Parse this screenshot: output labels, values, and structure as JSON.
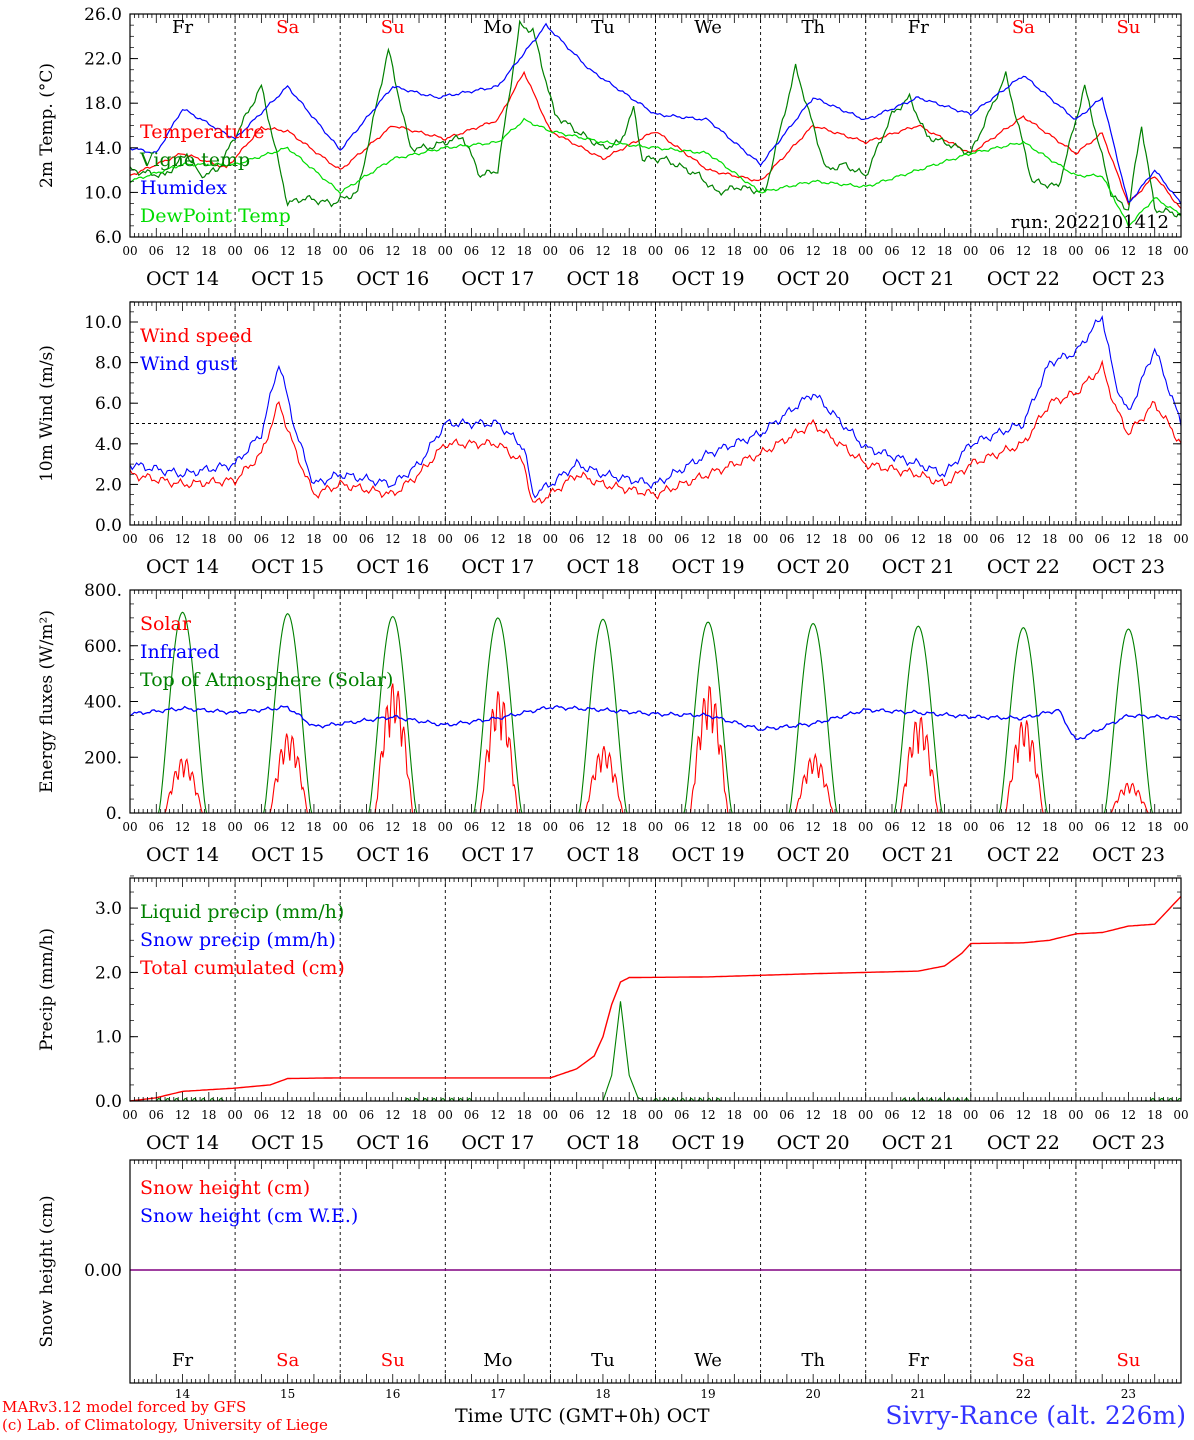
{
  "colors": {
    "red": "#ff0000",
    "green": "#008000",
    "blue": "#0000ff",
    "lime": "#00dd00",
    "purple": "#800080"
  },
  "days": [
    "Fr",
    "Sa",
    "Su",
    "Mo",
    "Tu",
    "We",
    "Th",
    "Fr",
    "Sa",
    "Su"
  ],
  "weekend_days": [
    1,
    2,
    8,
    9
  ],
  "dates": [
    "OCT 14",
    "OCT 15",
    "OCT 16",
    "OCT 17",
    "OCT 18",
    "OCT 19",
    "OCT 20",
    "OCT 21",
    "OCT 22",
    "OCT 23"
  ],
  "day_numbers": [
    "14",
    "15",
    "16",
    "17",
    "18",
    "19",
    "20",
    "21",
    "22",
    "23"
  ],
  "hour_ticks": [
    "00",
    "06",
    "12",
    "18"
  ],
  "hour_end": "00",
  "run_label": "run: 2022101412",
  "footer": {
    "model_line": "MARv3.12 model forced by GFS",
    "credit_line": "(c) Lab. of Climatology, University of Liege",
    "time_label": "Time UTC (GMT+0h) OCT",
    "station": "Sivry-Rance (alt. 226m)"
  },
  "chart_data": [
    {
      "type": "line",
      "ylabel": "2m Temp. (°C)",
      "ylim": [
        6,
        26
      ],
      "yticks": [
        "6.0",
        "10.0",
        "14.0",
        "18.0",
        "22.0",
        "26.0"
      ],
      "x_unit": "hours since Oct 14 00 UTC",
      "series": [
        {
          "name": "Temperature",
          "color": "#ff0000",
          "x": [
            0,
            12,
            22,
            30,
            36,
            48,
            60,
            72,
            84,
            90,
            96,
            108,
            120,
            132,
            144,
            156,
            168,
            180,
            192,
            204,
            216,
            222,
            228,
            234,
            240
          ],
          "y": [
            11.5,
            13.5,
            12.2,
            15.8,
            15.5,
            12.0,
            16.0,
            14.8,
            16.5,
            20.8,
            15.5,
            13.0,
            15.5,
            12.0,
            11.0,
            16.0,
            14.5,
            16.0,
            13.5,
            16.8,
            13.5,
            15.3,
            9.0,
            11.5,
            8.5
          ]
        },
        {
          "name": "Vigne temp",
          "color": "#008000",
          "x": [
            0,
            8,
            13,
            16,
            20,
            30,
            36,
            40,
            46,
            52,
            59,
            64,
            68,
            76,
            80,
            84,
            89,
            92,
            97,
            102,
            108,
            112,
            115,
            117,
            122,
            130,
            134,
            139,
            145,
            152,
            159,
            163,
            168,
            174,
            178,
            182,
            186,
            192,
            200,
            206,
            212,
            218,
            224,
            226,
            228,
            231,
            234,
            240
          ],
          "y": [
            12.0,
            11.5,
            13.5,
            11.5,
            12.0,
            19.5,
            9.0,
            9.5,
            9.0,
            10.0,
            22.8,
            14.0,
            14.0,
            15.0,
            11.5,
            12.0,
            25.0,
            24.5,
            17.0,
            15.5,
            14.0,
            14.5,
            17.5,
            13.0,
            13.0,
            11.5,
            10.0,
            10.5,
            10.0,
            21.2,
            12.0,
            12.5,
            11.5,
            17.0,
            18.5,
            15.0,
            14.5,
            13.5,
            20.5,
            11.0,
            10.5,
            19.5,
            10.0,
            9.0,
            8.5,
            16.0,
            8.5,
            8.0
          ]
        },
        {
          "name": "Humidex",
          "color": "#0000ff",
          "x": [
            0,
            6,
            12,
            24,
            36,
            48,
            60,
            70,
            84,
            95,
            105,
            120,
            132,
            144,
            156,
            168,
            180,
            192,
            204,
            216,
            222,
            228,
            234,
            240
          ],
          "y": [
            14.0,
            13.5,
            17.5,
            14.8,
            19.5,
            13.8,
            19.5,
            18.5,
            19.5,
            25.0,
            21.0,
            17.0,
            16.5,
            12.5,
            18.5,
            16.5,
            18.5,
            17.0,
            20.5,
            16.5,
            18.5,
            9.0,
            12.0,
            9.0
          ]
        },
        {
          "name": "DewPoint Temp",
          "color": "#00dd00",
          "x": [
            0,
            12,
            24,
            36,
            48,
            60,
            72,
            84,
            90,
            96,
            108,
            120,
            132,
            144,
            156,
            168,
            180,
            192,
            204,
            216,
            222,
            228,
            234,
            240
          ],
          "y": [
            11.0,
            12.5,
            12.5,
            14.0,
            10.0,
            13.0,
            14.0,
            14.5,
            16.5,
            15.5,
            14.5,
            14.0,
            13.5,
            10.0,
            11.0,
            10.5,
            12.0,
            13.5,
            14.5,
            11.5,
            11.5,
            7.0,
            9.5,
            8.0
          ]
        }
      ]
    },
    {
      "type": "line",
      "ylabel": "10m Wind (m/s)",
      "ylim": [
        0,
        11
      ],
      "yticks": [
        "0.0",
        "2.0",
        "4.0",
        "6.0",
        "8.0",
        "10.0"
      ],
      "reference_line": 5.0,
      "series": [
        {
          "name": "Wind speed",
          "color": "#ff0000",
          "x": [
            0,
            12,
            24,
            30,
            34,
            38,
            42,
            48,
            60,
            66,
            72,
            84,
            90,
            92,
            96,
            102,
            108,
            120,
            132,
            144,
            156,
            168,
            180,
            186,
            192,
            204,
            210,
            216,
            222,
            225,
            228,
            234,
            240
          ],
          "y": [
            2.5,
            2.0,
            2.2,
            3.5,
            6.0,
            3.5,
            1.5,
            2.0,
            1.5,
            2.5,
            4.0,
            4.0,
            3.0,
            1.0,
            1.5,
            2.5,
            2.0,
            1.5,
            2.5,
            3.5,
            5.0,
            3.0,
            2.5,
            2.0,
            3.0,
            4.0,
            6.0,
            6.5,
            7.8,
            5.8,
            4.5,
            6.0,
            4.0
          ]
        },
        {
          "name": "Wind gust",
          "color": "#0000ff",
          "x": [
            0,
            12,
            24,
            30,
            34,
            38,
            42,
            48,
            60,
            66,
            72,
            84,
            90,
            92,
            96,
            102,
            108,
            120,
            132,
            144,
            156,
            168,
            180,
            186,
            192,
            204,
            210,
            216,
            222,
            225,
            228,
            234,
            240
          ],
          "y": [
            3.0,
            2.5,
            3.0,
            4.5,
            8.0,
            4.5,
            2.0,
            2.5,
            2.0,
            3.0,
            5.0,
            5.0,
            3.8,
            1.5,
            2.0,
            3.0,
            2.5,
            2.0,
            3.5,
            4.5,
            6.5,
            3.8,
            3.0,
            2.5,
            4.0,
            5.0,
            8.0,
            8.5,
            10.3,
            7.0,
            5.5,
            8.7,
            5.0
          ]
        }
      ]
    },
    {
      "type": "line",
      "ylabel": "Energy fluxes (W/m²)",
      "ylim": [
        0,
        800
      ],
      "yticks": [
        "0.",
        "200.",
        "400.",
        "600.",
        "800."
      ],
      "series": [
        {
          "name": "Solar",
          "color": "#ff0000",
          "peaks": [
            200,
            290,
            470,
            440,
            240,
            460,
            210,
            350,
            340,
            110
          ]
        },
        {
          "name": "Infrared",
          "color": "#0000ff",
          "x": [
            0,
            12,
            24,
            36,
            42,
            48,
            60,
            72,
            84,
            96,
            108,
            120,
            132,
            144,
            156,
            168,
            180,
            192,
            204,
            212,
            216,
            228,
            240
          ],
          "y": [
            355,
            375,
            360,
            380,
            310,
            320,
            345,
            315,
            340,
            380,
            370,
            355,
            350,
            300,
            320,
            370,
            360,
            345,
            340,
            370,
            260,
            350,
            340
          ]
        },
        {
          "name": "Top of Atmosphere (Solar)",
          "color": "#008000",
          "peaks": [
            720,
            715,
            705,
            700,
            695,
            685,
            680,
            670,
            665,
            660
          ]
        }
      ]
    },
    {
      "type": "line",
      "ylabel": "Precip (mm/h)",
      "ylim": [
        0,
        3.5
      ],
      "yticks": [
        "0.0",
        "1.0",
        "2.0",
        "3.0"
      ],
      "series": [
        {
          "name": "Liquid precip (mm/h)",
          "color": "#008000",
          "x": [
            0,
            108,
            110,
            112,
            114,
            116,
            118,
            240
          ],
          "y": [
            0,
            0,
            0.4,
            1.55,
            0.4,
            0.05,
            0,
            0
          ]
        },
        {
          "name": "Snow precip (mm/h)",
          "color": "#0000ff",
          "x": [
            0,
            240
          ],
          "y": [
            0,
            0
          ]
        },
        {
          "name": "Total cumulated (cm)",
          "color": "#ff0000",
          "x": [
            0,
            6,
            12,
            24,
            32,
            36,
            48,
            72,
            84,
            96,
            102,
            106,
            108,
            110,
            112,
            114,
            132,
            156,
            168,
            180,
            186,
            190,
            192,
            204,
            210,
            216,
            222,
            228,
            234,
            240
          ],
          "y": [
            0.0,
            0.05,
            0.15,
            0.2,
            0.25,
            0.35,
            0.36,
            0.36,
            0.36,
            0.36,
            0.5,
            0.7,
            1.0,
            1.5,
            1.85,
            1.92,
            1.93,
            1.98,
            2.0,
            2.02,
            2.1,
            2.3,
            2.45,
            2.46,
            2.5,
            2.6,
            2.62,
            2.72,
            2.75,
            3.18
          ]
        }
      ]
    },
    {
      "type": "line",
      "ylabel": "Snow height (cm)",
      "yticks": [
        "0.00"
      ],
      "series": [
        {
          "name": "Snow height (cm)",
          "color": "#ff0000",
          "x": [
            0,
            240
          ],
          "y": [
            0,
            0
          ]
        },
        {
          "name": "Snow height (cm W.E.)",
          "color": "#0000ff",
          "x": [
            0,
            240
          ],
          "y": [
            0,
            0
          ]
        }
      ]
    }
  ]
}
